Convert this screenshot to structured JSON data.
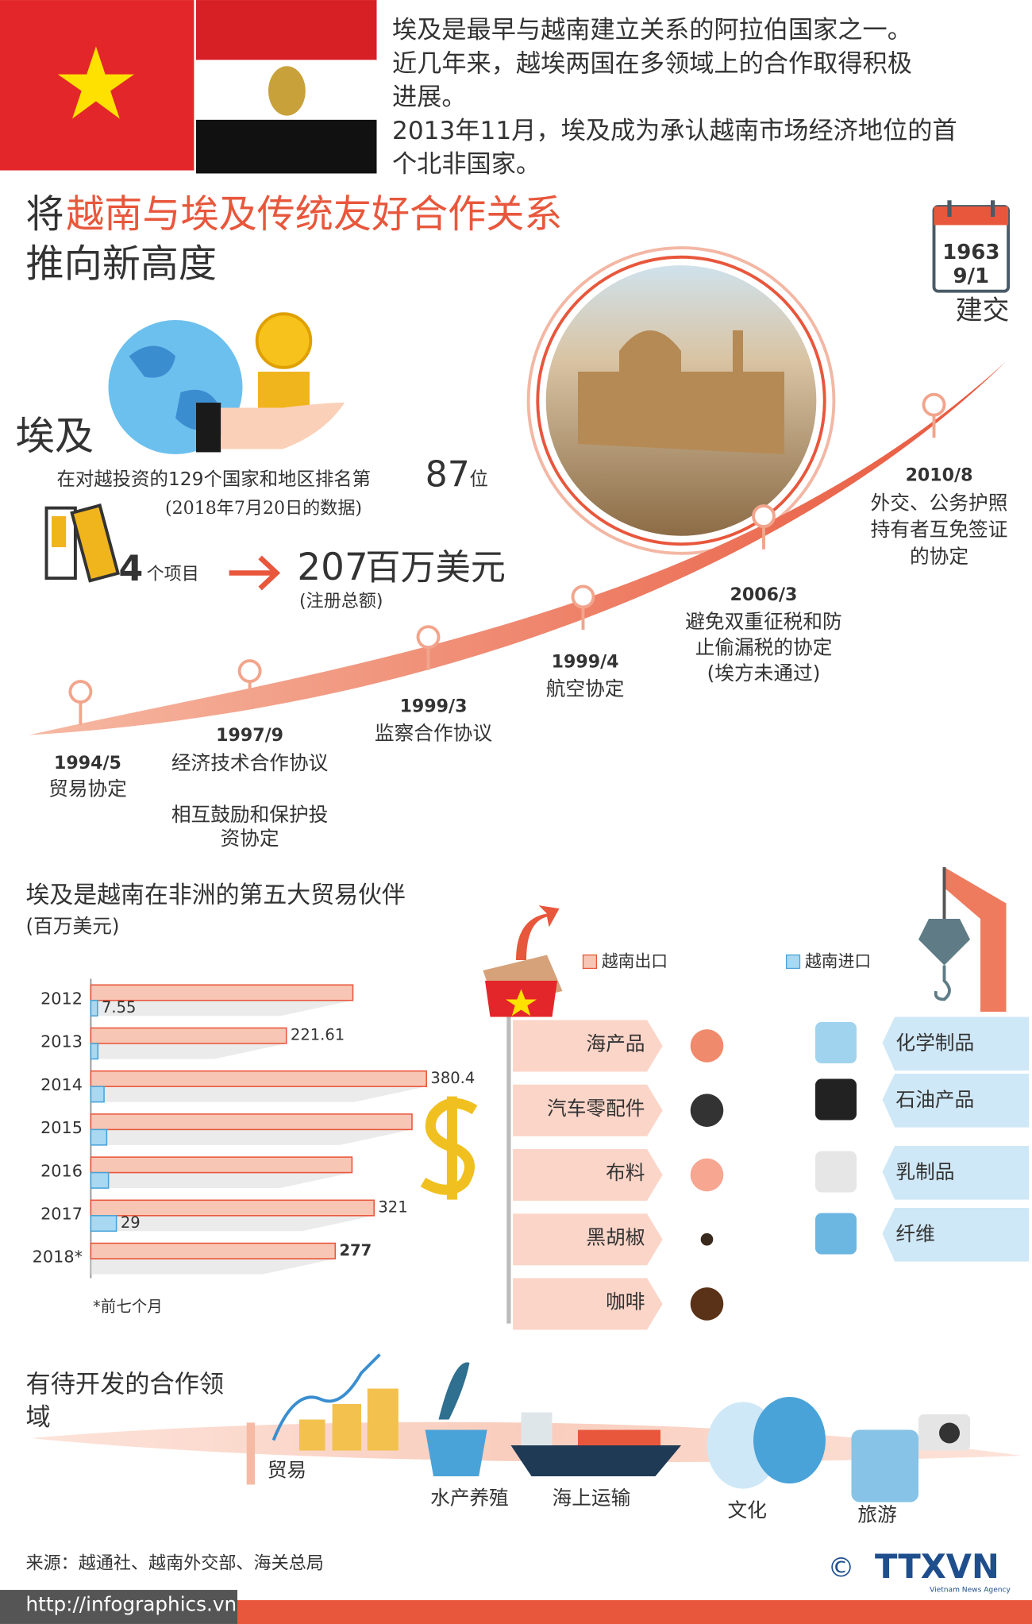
{
  "intro": [
    "埃及是最早与越南建立关系的阿拉伯国家之一。",
    "近几年来，越埃两国在多领域上的合作取得积极",
    "进展。",
    "2013年11月，埃及成为承认越南市场经济地位的首",
    "个北非国家。"
  ],
  "title": {
    "prefix": "将",
    "highlight": "越南与埃及传统友好合作关系",
    "line2": "推向新高度"
  },
  "establishment": {
    "year": "1963",
    "date": "9/1",
    "label": "建交"
  },
  "investment": {
    "country": "埃及",
    "rank_text": "在对越投资的129个国家和地区排名第",
    "rank": "87",
    "rank_unit": "位",
    "rank_note": "(2018年7月20日的数据)",
    "projects": "4",
    "projects_unit": "个项目",
    "capital": "207",
    "capital_unit": "百万美元",
    "capital_note": "(注册总额)"
  },
  "timeline": [
    {
      "date": "1994/5",
      "lines": [
        "贸易协定"
      ]
    },
    {
      "date": "1997/9",
      "lines": [
        "经济技术合作协议",
        "相互鼓励和保护投",
        "资协定"
      ]
    },
    {
      "date": "1999/3",
      "lines": [
        "监察合作协议"
      ]
    },
    {
      "date": "1999/4",
      "lines": [
        "航空协定"
      ]
    },
    {
      "date": "2006/3",
      "lines": [
        "避免双重征税和防",
        "止偷漏税的协定",
        "(埃方未通过)"
      ]
    },
    {
      "date": "2010/8",
      "lines": [
        "外交、公务护照",
        "持有者互免签证",
        "的协定"
      ]
    }
  ],
  "chart_data": {
    "type": "bar",
    "orientation": "horizontal",
    "title": "埃及是越南在非洲的第五大贸易伙伴",
    "subtitle": "(百万美元)",
    "note": "*前七个月",
    "categories": [
      "2012",
      "2013",
      "2014",
      "2015",
      "2016",
      "2017",
      "2018*"
    ],
    "series": [
      {
        "name": "越南出口",
        "color": "#f8c6b4",
        "values": [
          297,
          221.61,
          380.4,
          364,
          296,
          321,
          277
        ],
        "value_labels": [
          null,
          "221.61",
          "380.4",
          null,
          null,
          "321",
          "277"
        ]
      },
      {
        "name": "越南进口",
        "color": "#a8d8f2",
        "values": [
          7.55,
          8,
          15,
          18,
          20,
          29,
          null
        ],
        "value_labels": [
          "7.55",
          null,
          null,
          null,
          null,
          "29",
          null
        ]
      }
    ]
  },
  "trade_goods": {
    "exports": [
      "海产品",
      "汽车零配件",
      "布料",
      "黑胡椒",
      "咖啡"
    ],
    "imports": [
      "化学制品",
      "石油产品",
      "乳制品",
      "纤维"
    ]
  },
  "potential": {
    "title": [
      "有待开发的合作领",
      "域"
    ],
    "items": [
      "贸易",
      "水产养殖",
      "海上运输",
      "文化",
      "旅游"
    ]
  },
  "footer": {
    "source": "来源：越通社、越南外交部、海关总局",
    "url": "http://infographics.vn",
    "copyright": "©",
    "agency": "TTXVN",
    "agency_full": "Vietnam News Agency"
  }
}
